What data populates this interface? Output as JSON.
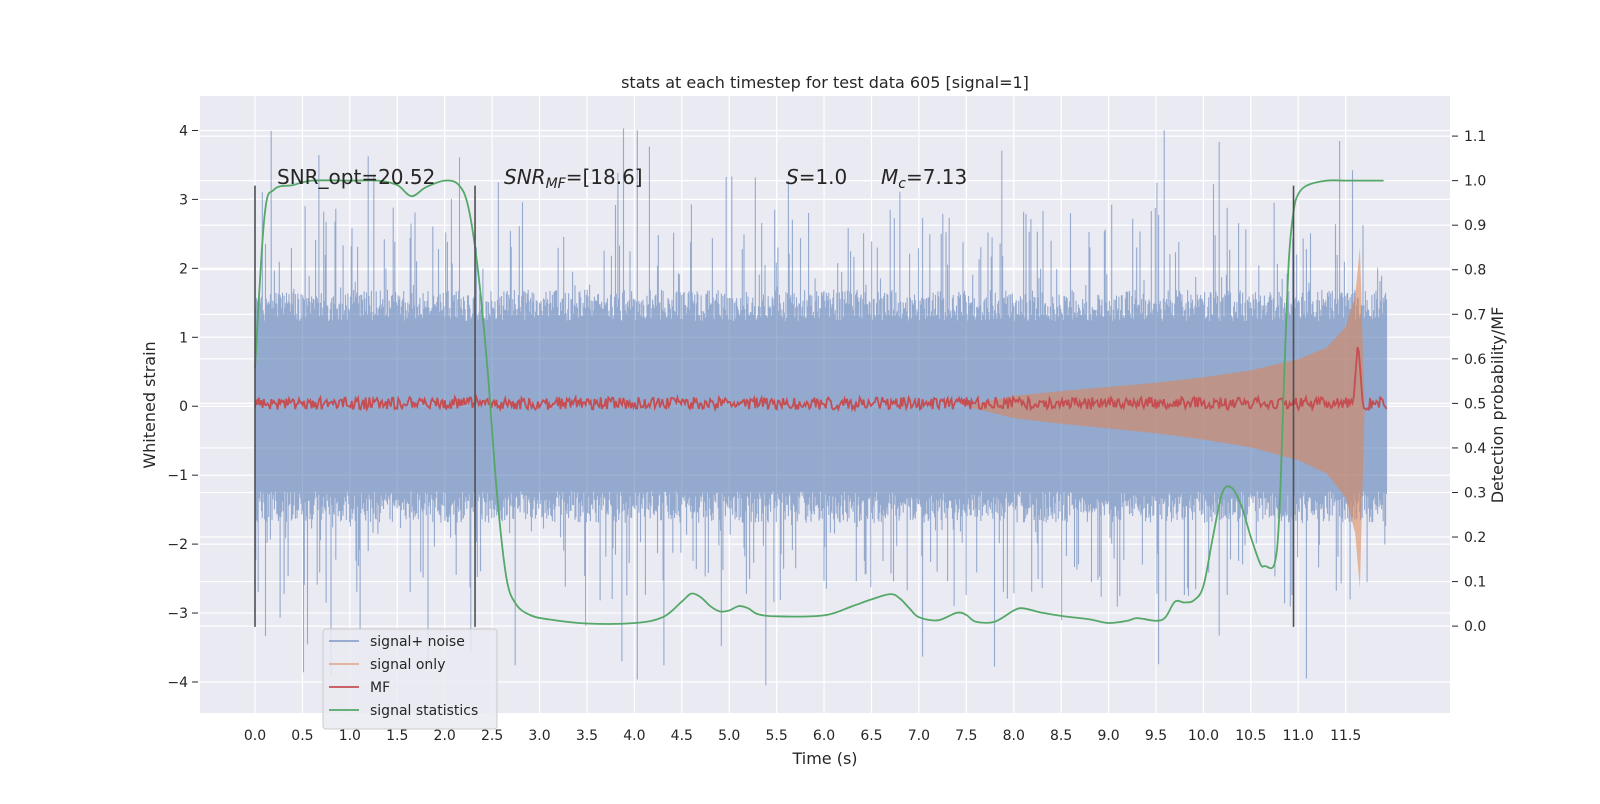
{
  "chart_data": {
    "type": "line",
    "title": "stats at each timestep for test data 605 [signal=1]",
    "xlabel": "Time (s)",
    "ylabel": "Whitened strain",
    "y2label": "Detection probability/MF",
    "xlim": [
      -0.58,
      12.6
    ],
    "ylim": [
      -4.45,
      4.5
    ],
    "y2lim": [
      -0.195,
      1.19
    ],
    "x_ticks": [
      "0.0",
      "0.5",
      "1.0",
      "1.5",
      "2.0",
      "2.5",
      "3.0",
      "3.5",
      "4.0",
      "4.5",
      "5.0",
      "5.5",
      "6.0",
      "6.5",
      "7.0",
      "7.5",
      "8.0",
      "8.5",
      "9.0",
      "9.5",
      "10.0",
      "10.5",
      "11.0",
      "11.5"
    ],
    "y_ticks": [
      "4",
      "3",
      "2",
      "1",
      "0",
      "−1",
      "−2",
      "−3",
      "−4"
    ],
    "y2_ticks": [
      "1.1",
      "1.0",
      "0.9",
      "0.8",
      "0.7",
      "0.6",
      "0.5",
      "0.4",
      "0.3",
      "0.2",
      "0.1",
      "0.0"
    ],
    "grid": true,
    "legend_position": "lower-left",
    "annotations": {
      "snr_opt": "SNR_opt=20.52",
      "snr_mf_label": "SNR",
      "snr_mf_sub": "MF",
      "snr_mf_value": "=[18.6]",
      "s_label": "S",
      "s_value": "=1.0",
      "mc_label": "M",
      "mc_sub": "c",
      "mc_value": "=7.13"
    },
    "vertical_lines_x": [
      0.0,
      2.32,
      10.95
    ],
    "vertical_lines_range": [
      -3.2,
      3.2
    ],
    "series": [
      {
        "name": "signal+ noise",
        "color": "#4c72b0",
        "axis": "left",
        "kind": "noise band",
        "x_range": [
          0.0,
          11.93
        ],
        "typical_amplitude": 1.3,
        "max": 4.1,
        "min": -4.05
      },
      {
        "name": "signal only",
        "color": "#dd8452",
        "axis": "left",
        "kind": "chirp envelope",
        "x": [
          7.5,
          8.0,
          8.5,
          9.0,
          9.5,
          10.0,
          10.5,
          11.0,
          11.3,
          11.5,
          11.6,
          11.65,
          11.7
        ],
        "envelope": [
          0.0,
          0.15,
          0.22,
          0.28,
          0.34,
          0.42,
          0.52,
          0.68,
          0.85,
          1.15,
          1.6,
          2.3,
          0.0
        ]
      },
      {
        "name": "MF",
        "color": "#c44e52",
        "axis": "right",
        "baseline": 0.5,
        "x_range": [
          0.0,
          11.93
        ],
        "peak_x": 11.63,
        "peak_y": 0.64
      },
      {
        "name": "signal statistics",
        "color": "#55a868",
        "axis": "right",
        "x": [
          0.0,
          0.1,
          0.2,
          0.4,
          0.6,
          1.0,
          1.3,
          1.5,
          1.65,
          1.8,
          2.0,
          2.15,
          2.25,
          2.35,
          2.45,
          2.55,
          2.65,
          2.75,
          2.9,
          3.1,
          3.5,
          4.0,
          4.3,
          4.5,
          4.6,
          4.7,
          4.8,
          4.9,
          5.0,
          5.1,
          5.2,
          5.3,
          5.5,
          6.0,
          6.3,
          6.5,
          6.7,
          6.8,
          6.9,
          7.0,
          7.2,
          7.4,
          7.5,
          7.6,
          7.8,
          8.0,
          8.1,
          8.3,
          8.5,
          8.8,
          9.0,
          9.2,
          9.3,
          9.5,
          9.6,
          9.7,
          9.8,
          9.9,
          10.0,
          10.1,
          10.2,
          10.3,
          10.4,
          10.5,
          10.6,
          10.65,
          10.75,
          10.8,
          10.85,
          10.9,
          10.95,
          11.0,
          11.1,
          11.3,
          11.5,
          11.7,
          11.9
        ],
        "y": [
          0.58,
          0.92,
          0.98,
          0.99,
          1.0,
          1.0,
          1.0,
          0.99,
          0.965,
          0.985,
          1.0,
          0.99,
          0.94,
          0.8,
          0.58,
          0.3,
          0.11,
          0.05,
          0.025,
          0.015,
          0.006,
          0.007,
          0.02,
          0.055,
          0.073,
          0.065,
          0.045,
          0.033,
          0.035,
          0.045,
          0.04,
          0.027,
          0.022,
          0.024,
          0.045,
          0.06,
          0.072,
          0.062,
          0.04,
          0.02,
          0.013,
          0.03,
          0.025,
          0.01,
          0.01,
          0.035,
          0.04,
          0.03,
          0.023,
          0.015,
          0.007,
          0.012,
          0.018,
          0.012,
          0.02,
          0.055,
          0.053,
          0.058,
          0.09,
          0.2,
          0.3,
          0.31,
          0.27,
          0.2,
          0.14,
          0.135,
          0.14,
          0.25,
          0.55,
          0.82,
          0.93,
          0.97,
          0.99,
          1.0,
          1.0,
          1.0,
          1.0
        ]
      }
    ]
  }
}
